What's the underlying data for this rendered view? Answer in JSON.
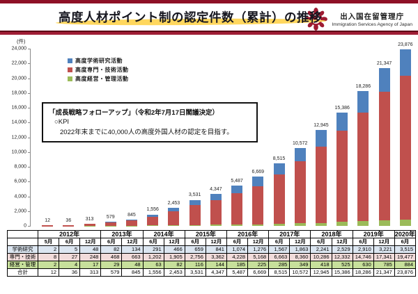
{
  "header": {
    "title": "高度人材ポイント制の認定件数（累計）の推移",
    "agency_name_ja": "出入国在留管理庁",
    "agency_name_en": "Immigration Services Agency of Japan"
  },
  "callout": {
    "line1": "「成長戦略フォローアップ」（令和2年7月17日閣議決定）",
    "line2": "○KPI",
    "line3": "2022年末までに40,000人の高度外国人材の認定を目指す。"
  },
  "chart_data": {
    "type": "bar",
    "stacked": true,
    "unit_label": "(件)",
    "ylim": [
      0,
      24000
    ],
    "yticks": [
      0,
      2000,
      4000,
      6000,
      8000,
      10000,
      12000,
      14000,
      16000,
      18000,
      20000,
      22000,
      24000
    ],
    "ytick_labels": [
      "0",
      "2,000",
      "4,000",
      "6,000",
      "8,000",
      "10,000",
      "12,000",
      "14,000",
      "16,000",
      "18,000",
      "20,000",
      "22,000",
      "24,000"
    ],
    "grid": false,
    "legend_position": "upper-left",
    "categories": [
      "2012年5月",
      "2012年6月",
      "2012年12月",
      "2013年6月",
      "2013年12月",
      "2014年6月",
      "2014年12月",
      "2015年6月",
      "2015年12月",
      "2016年6月",
      "2016年12月",
      "2017年6月",
      "2017年12月",
      "2018年6月",
      "2018年12月",
      "2019年6月",
      "2019年12月",
      "2020年6月"
    ],
    "series": [
      {
        "name": "高度学術研究活動",
        "color": "#4f81bd",
        "values": [
          2,
          5,
          48,
          82,
          134,
          291,
          466,
          659,
          841,
          1074,
          1276,
          1567,
          1863,
          2241,
          2529,
          2910,
          3221,
          3515
        ]
      },
      {
        "name": "高度専門・技術活動",
        "color": "#c0504d",
        "values": [
          8,
          27,
          248,
          468,
          663,
          1202,
          1905,
          2756,
          3362,
          4228,
          5168,
          6663,
          8360,
          10286,
          12332,
          14746,
          17341,
          19477
        ]
      },
      {
        "name": "高度経営・管理活動",
        "color": "#9bbb59",
        "values": [
          2,
          4,
          17,
          29,
          48,
          63,
          82,
          116,
          144,
          185,
          225,
          285,
          349,
          418,
          525,
          630,
          785,
          884
        ]
      }
    ],
    "stack_order_bottom_to_top": [
      "高度経営・管理活動",
      "高度専門・技術活動",
      "高度学術研究活動"
    ],
    "totals": [
      12,
      36,
      313,
      579,
      845,
      1556,
      2453,
      3531,
      4347,
      5487,
      6669,
      8515,
      10572,
      12945,
      15386,
      18286,
      21347,
      23876
    ],
    "total_labels": [
      "12",
      "36",
      "313",
      "579",
      "845",
      "1,556",
      "2,453",
      "3,531",
      "4,347",
      "5,487",
      "6,669",
      "8,515",
      "10,572",
      "12,945",
      "15,386",
      "18,286",
      "21,347",
      "23,876"
    ]
  },
  "table": {
    "year_headers": [
      {
        "label": "2012年",
        "span": 3
      },
      {
        "label": "2013年",
        "span": 2
      },
      {
        "label": "2014年",
        "span": 2
      },
      {
        "label": "2015年",
        "span": 2
      },
      {
        "label": "2016年",
        "span": 2
      },
      {
        "label": "2017年",
        "span": 2
      },
      {
        "label": "2018年",
        "span": 2
      },
      {
        "label": "2019年",
        "span": 2
      },
      {
        "label": "2020年",
        "span": 1
      }
    ],
    "month_headers": [
      "5月",
      "6月",
      "12月",
      "6月",
      "12月",
      "6月",
      "12月",
      "6月",
      "12月",
      "6月",
      "12月",
      "6月",
      "12月",
      "6月",
      "12月",
      "6月",
      "12月",
      "6月"
    ],
    "rows": [
      {
        "label": "学術研究",
        "bg": "#dce6f1",
        "values": [
          "2",
          "5",
          "48",
          "82",
          "134",
          "291",
          "466",
          "659",
          "841",
          "1,074",
          "1,276",
          "1,567",
          "1,863",
          "2,241",
          "2,529",
          "2,910",
          "3,221",
          "3,515"
        ]
      },
      {
        "label": "専門・技術",
        "bg": "#f2dcdb",
        "values": [
          "8",
          "27",
          "248",
          "468",
          "663",
          "1,202",
          "1,905",
          "2,756",
          "3,362",
          "4,228",
          "5,168",
          "6,663",
          "8,360",
          "10,286",
          "12,332",
          "14,746",
          "17,341",
          "19,477"
        ]
      },
      {
        "label": "経営・管理",
        "bg": "#c7e09b",
        "values": [
          "2",
          "4",
          "17",
          "29",
          "48",
          "63",
          "82",
          "116",
          "144",
          "185",
          "225",
          "285",
          "349",
          "418",
          "525",
          "630",
          "785",
          "884"
        ]
      },
      {
        "label": "合計",
        "bg": "#ffffff",
        "values": [
          "12",
          "36",
          "313",
          "579",
          "845",
          "1,556",
          "2,453",
          "3,531",
          "4,347",
          "5,487",
          "6,669",
          "8,515",
          "10,572",
          "12,945",
          "15,386",
          "18,286",
          "21,347",
          "23,876"
        ]
      }
    ]
  }
}
